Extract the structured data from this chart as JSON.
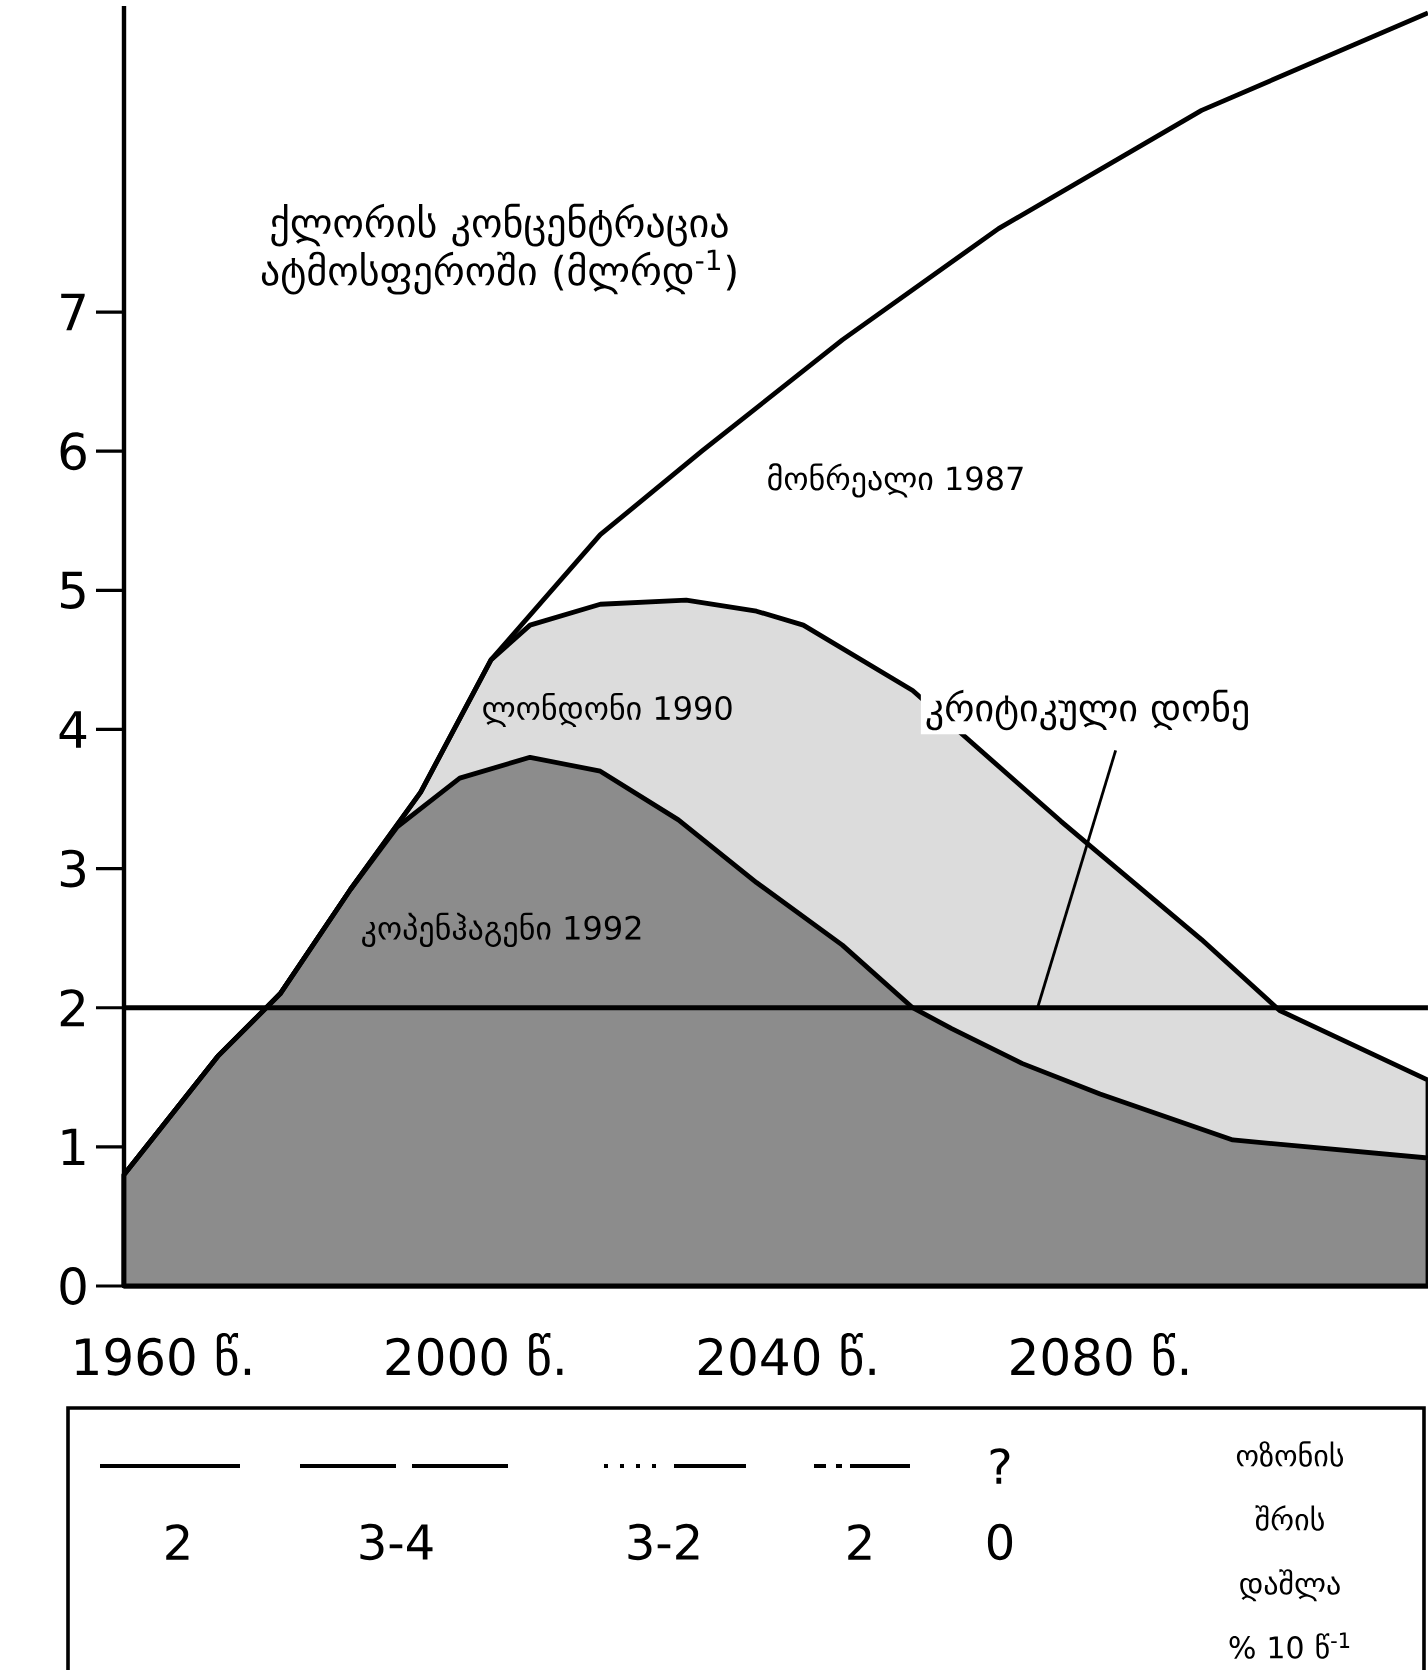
{
  "chart_data": {
    "type": "area",
    "ylabel": "ქლორის კონცენტრაცია ატმოსფეროში (მლრდ$^{-1}$)",
    "xlim": [
      1955,
      2122
    ],
    "ylim": [
      0,
      9.2
    ],
    "xticks": [
      {
        "value": 1960,
        "label": "1960 წ."
      },
      {
        "value": 2000,
        "label": "2000 წ."
      },
      {
        "value": 2040,
        "label": "2040 წ."
      },
      {
        "value": 2080,
        "label": "2080 წ."
      }
    ],
    "yticks": [
      0,
      1,
      2,
      3,
      4,
      5,
      6,
      7
    ],
    "series": [
      {
        "name": "მონრეალი 1987",
        "type": "line",
        "color": "#000000",
        "x": [
          1955,
          1967,
          1975,
          1984,
          1993,
          2002,
          2016,
          2029,
          2047,
          2067,
          2093,
          2122
        ],
        "values": [
          0.8,
          1.65,
          2.1,
          2.85,
          3.55,
          4.5,
          5.4,
          6.0,
          6.8,
          7.6,
          8.45,
          9.15
        ]
      },
      {
        "name": "ლონდონი 1990",
        "color": "#dcdcdc",
        "x": [
          1955,
          1967,
          1975,
          1984,
          1993,
          2002,
          2007,
          2016,
          2027,
          2036,
          2042,
          2056,
          2075,
          2093,
          2103,
          2122
        ],
        "values": [
          0.8,
          1.65,
          2.1,
          2.85,
          3.55,
          4.5,
          4.75,
          4.9,
          4.93,
          4.85,
          4.75,
          4.28,
          3.34,
          2.49,
          1.98,
          1.48
        ]
      },
      {
        "name": "კოპენჰაგენი 1992",
        "color": "#8c8c8c",
        "x": [
          1955,
          1967,
          1975,
          1984,
          1990,
          1998,
          2007,
          2016,
          2026,
          2036,
          2047,
          2056,
          2061,
          2070,
          2080,
          2097,
          2122
        ],
        "values": [
          0.8,
          1.65,
          2.1,
          2.85,
          3.3,
          3.65,
          3.8,
          3.7,
          3.35,
          2.9,
          2.45,
          2.0,
          1.85,
          1.6,
          1.38,
          1.05,
          0.92
        ]
      }
    ],
    "ref_lines": [
      {
        "axis": "y",
        "value": 2,
        "label": "კრიტიკული დონე",
        "color": "#000000"
      }
    ],
    "annotations": [
      "2",
      "3-4",
      "3-2",
      "2",
      "?",
      "0",
      "ოზონის შრის დაშლა % 10 წ$^{-1}$"
    ]
  }
}
